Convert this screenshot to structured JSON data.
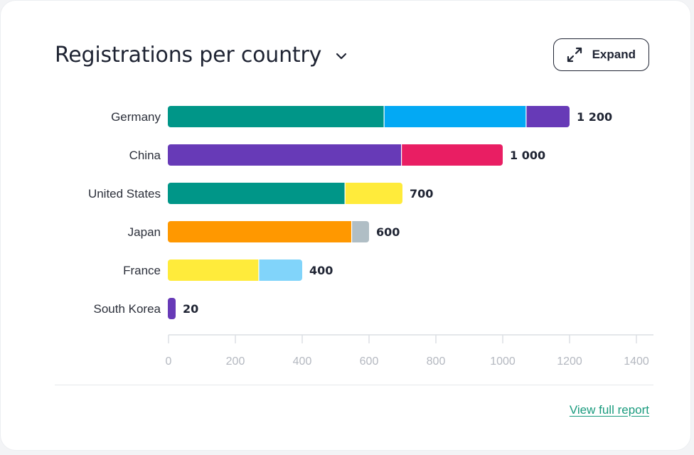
{
  "header": {
    "title": "Registrations per country",
    "expand_label": "Expand"
  },
  "footer": {
    "link_label": "View full report"
  },
  "icons": {
    "title_dropdown": "chevron-down-icon",
    "expand": "expand-arrows-icon"
  },
  "colors": {
    "link": "#1a9b7e",
    "text": "#1f2433"
  },
  "chart_data": {
    "type": "bar",
    "orientation": "horizontal",
    "stacked": true,
    "title": "Registrations per country",
    "xlabel": "",
    "ylabel": "",
    "xlim": [
      0,
      1400
    ],
    "xticks": [
      0,
      200,
      400,
      600,
      800,
      1000,
      1200,
      1400
    ],
    "grid": false,
    "legend": "none",
    "categories": [
      "Germany",
      "China",
      "United States",
      "Japan",
      "France",
      "South Korea"
    ],
    "rows": [
      {
        "label": "Germany",
        "total": 1200,
        "total_label": "1 200",
        "segments": [
          {
            "value": 645,
            "color": "#009688"
          },
          {
            "value": 425,
            "color": "#03a9f4"
          },
          {
            "value": 130,
            "color": "#673ab7"
          }
        ]
      },
      {
        "label": "China",
        "total": 1000,
        "total_label": "1 000",
        "segments": [
          {
            "value": 697,
            "color": "#673ab7"
          },
          {
            "value": 303,
            "color": "#e91e63"
          }
        ]
      },
      {
        "label": "United States",
        "total": 700,
        "total_label": "700",
        "segments": [
          {
            "value": 528,
            "color": "#009688"
          },
          {
            "value": 172,
            "color": "#ffeb3b"
          }
        ]
      },
      {
        "label": "Japan",
        "total": 600,
        "total_label": "600",
        "segments": [
          {
            "value": 548,
            "color": "#ff9800"
          },
          {
            "value": 52,
            "color": "#b0bec5"
          }
        ]
      },
      {
        "label": "France",
        "total": 400,
        "total_label": "400",
        "segments": [
          {
            "value": 270,
            "color": "#ffeb3b"
          },
          {
            "value": 130,
            "color": "#81d4fa"
          }
        ]
      },
      {
        "label": "South Korea",
        "total": 20,
        "total_label": "20",
        "segments": [
          {
            "value": 20,
            "color": "#673ab7"
          }
        ]
      }
    ]
  }
}
